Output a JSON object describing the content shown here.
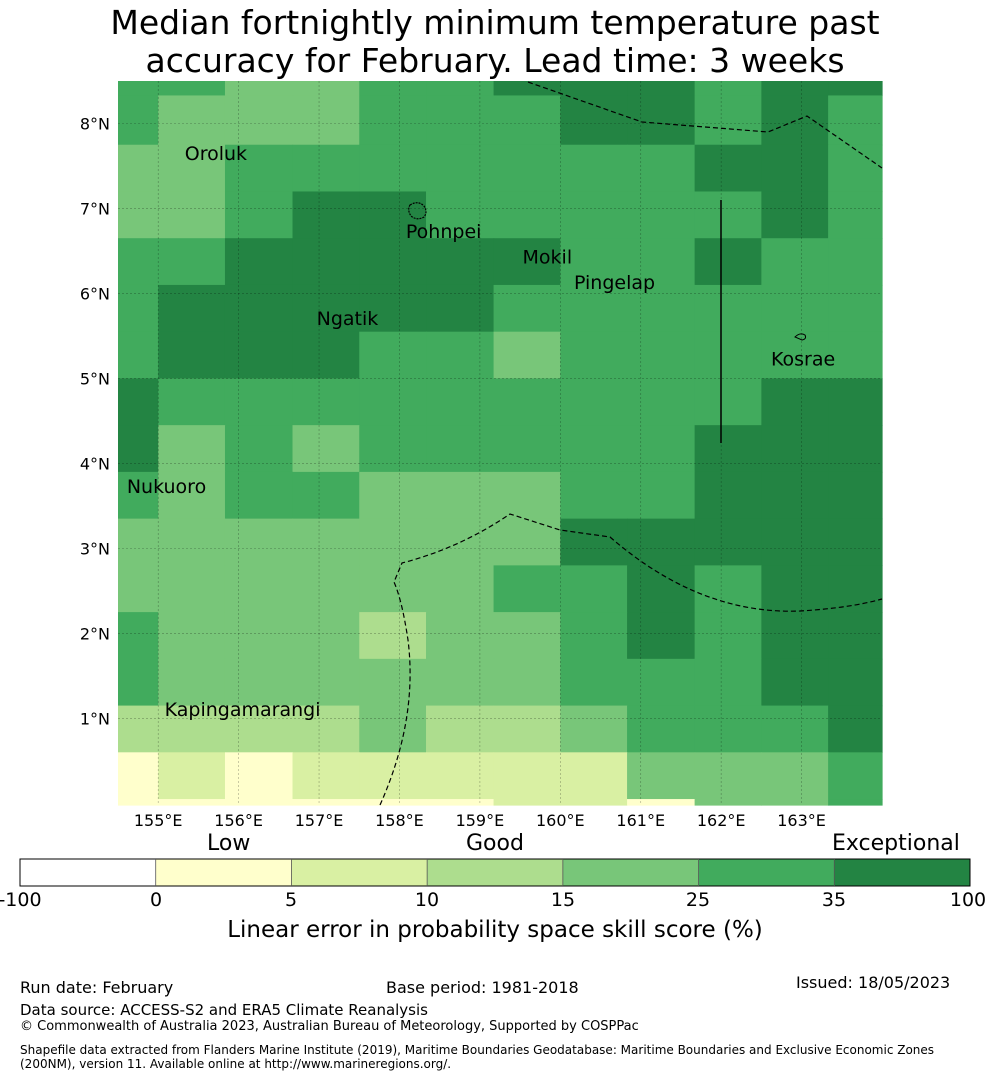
{
  "title_line1": "Median fortnightly minimum temperature past",
  "title_line2": "accuracy for February. Lead time: 3 weeks",
  "map": {
    "lon_range": [
      154.5,
      164.0
    ],
    "lat_range": [
      -0.02,
      8.5
    ],
    "lat_ticks": [
      {
        "value": 8,
        "label": "8°N"
      },
      {
        "value": 7,
        "label": "7°N"
      },
      {
        "value": 6,
        "label": "6°N"
      },
      {
        "value": 5,
        "label": "5°N"
      },
      {
        "value": 4,
        "label": "4°N"
      },
      {
        "value": 3,
        "label": "3°N"
      },
      {
        "value": 2,
        "label": "2°N"
      },
      {
        "value": 1,
        "label": "1°N"
      }
    ],
    "lon_ticks": [
      {
        "value": 155,
        "label": "155°E"
      },
      {
        "value": 156,
        "label": "156°E"
      },
      {
        "value": 157,
        "label": "157°E"
      },
      {
        "value": 158,
        "label": "158°E"
      },
      {
        "value": 159,
        "label": "159°E"
      },
      {
        "value": 160,
        "label": "160°E"
      },
      {
        "value": 161,
        "label": "161°E"
      },
      {
        "value": 162,
        "label": "162°E"
      },
      {
        "value": 163,
        "label": "163°E"
      }
    ],
    "places": [
      {
        "name": "Oroluk",
        "lon": 155.33,
        "lat": 7.57
      },
      {
        "name": "Pohnpei",
        "lon": 158.08,
        "lat": 6.65
      },
      {
        "name": "Mokil",
        "lon": 159.53,
        "lat": 6.35
      },
      {
        "name": "Pingelap",
        "lon": 160.17,
        "lat": 6.05
      },
      {
        "name": "Ngatik",
        "lon": 156.97,
        "lat": 5.63
      },
      {
        "name": "Kosrae",
        "lon": 162.62,
        "lat": 5.15
      },
      {
        "name": "Nukuoro",
        "lon": 154.61,
        "lat": 3.65
      },
      {
        "name": "Kapingamarangi",
        "lon": 155.08,
        "lat": 1.03
      }
    ],
    "grid_columns": [
      154.5,
      155.0,
      155.83,
      156.67,
      157.5,
      158.33,
      159.17,
      160.0,
      160.83,
      161.67,
      162.5,
      163.33,
      164.0
    ],
    "grid_rows": [
      8.5,
      8.33,
      7.75,
      7.2,
      6.65,
      6.1,
      5.55,
      5.0,
      4.45,
      3.9,
      3.35,
      2.8,
      2.25,
      1.7,
      1.15,
      0.6,
      0.05,
      -0.02
    ],
    "grid_values": [
      [
        30,
        30,
        20,
        20,
        30,
        30,
        40,
        40,
        40,
        30,
        40,
        40
      ],
      [
        30,
        20,
        20,
        20,
        30,
        30,
        30,
        40,
        40,
        30,
        40,
        30
      ],
      [
        20,
        20,
        30,
        30,
        30,
        30,
        30,
        30,
        30,
        40,
        40,
        30
      ],
      [
        20,
        20,
        30,
        40,
        40,
        30,
        30,
        30,
        30,
        30,
        40,
        30
      ],
      [
        30,
        30,
        40,
        40,
        40,
        40,
        40,
        30,
        30,
        40,
        30,
        30
      ],
      [
        30,
        40,
        40,
        40,
        40,
        40,
        30,
        30,
        30,
        30,
        30,
        30
      ],
      [
        30,
        40,
        40,
        40,
        30,
        30,
        20,
        30,
        30,
        30,
        30,
        30
      ],
      [
        40,
        30,
        30,
        30,
        30,
        30,
        30,
        30,
        30,
        30,
        40,
        40
      ],
      [
        40,
        20,
        30,
        20,
        30,
        30,
        30,
        30,
        30,
        40,
        40,
        40
      ],
      [
        30,
        20,
        30,
        30,
        20,
        20,
        20,
        30,
        30,
        40,
        40,
        40
      ],
      [
        20,
        20,
        20,
        20,
        20,
        20,
        20,
        40,
        40,
        40,
        40,
        40
      ],
      [
        20,
        20,
        20,
        20,
        20,
        20,
        30,
        30,
        40,
        30,
        40,
        40
      ],
      [
        30,
        20,
        20,
        20,
        12,
        20,
        20,
        30,
        40,
        30,
        40,
        40
      ],
      [
        30,
        20,
        20,
        20,
        20,
        20,
        20,
        30,
        30,
        30,
        40,
        40
      ],
      [
        12,
        12,
        12,
        12,
        20,
        12,
        12,
        20,
        30,
        30,
        30,
        40
      ],
      [
        3,
        8,
        3,
        8,
        8,
        8,
        8,
        8,
        20,
        20,
        20,
        30
      ],
      [
        3,
        3,
        3,
        3,
        3,
        3,
        8,
        8,
        3,
        20,
        20,
        30
      ]
    ]
  },
  "colorbar": {
    "categories": [
      "Low",
      "Good",
      "Exceptional"
    ],
    "boundaries": [
      "-100",
      "0",
      "5",
      "10",
      "15",
      "25",
      "35",
      "100"
    ],
    "colors": [
      "#ffffff",
      "#ffffcc",
      "#d9f0a3",
      "#addd8e",
      "#78c679",
      "#41ab5d",
      "#238443"
    ],
    "label": "Linear error in probability space skill score (%)"
  },
  "footer": {
    "run_date": "Run date: February",
    "base_period": "Base period: 1981-2018",
    "issued": "Issued: 18/05/2023",
    "data_source": "Data source: ACCESS-S2 and ERA5 Climate Reanalysis",
    "copyright": "© Commonwealth of Australia 2023, Australian Bureau of Meteorology, Supported by COSPPac",
    "shapefile": "Shapefile data extracted from Flanders Marine Institute (2019), Maritime Boundaries Geodatabase: Maritime Boundaries and Exclusive Economic Zones (200NM), version 11. Available online at http://www.marineregions.org/."
  }
}
